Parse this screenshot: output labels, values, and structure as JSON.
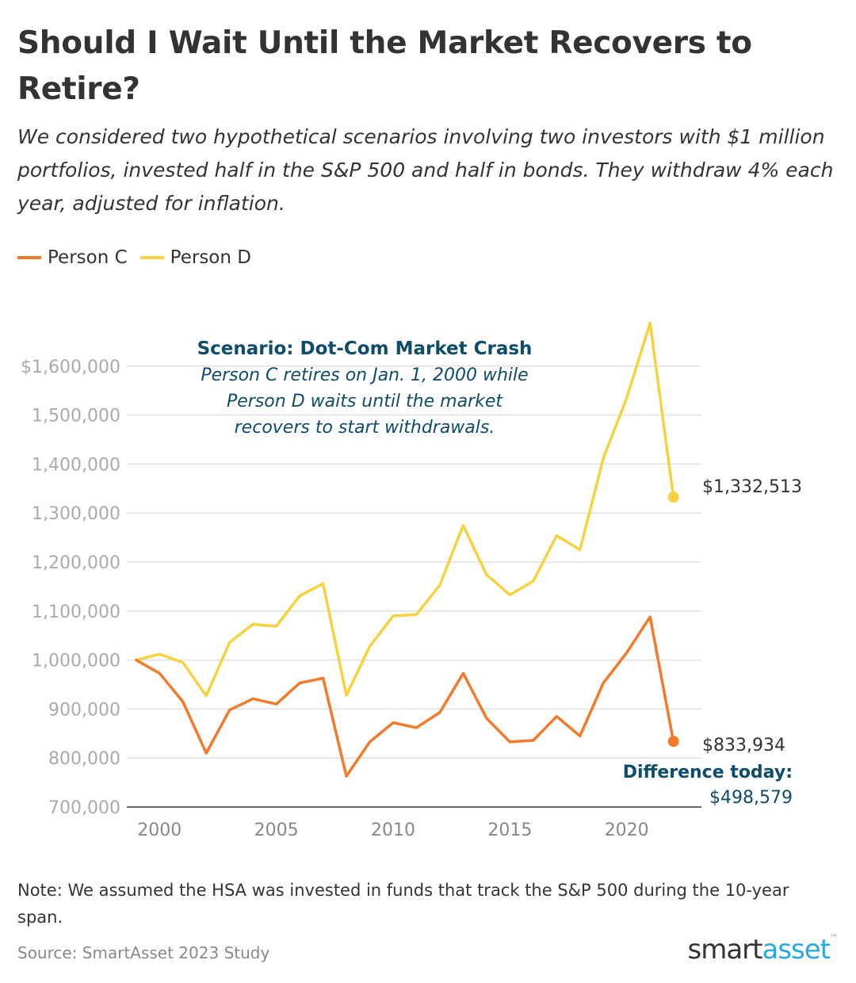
{
  "header": {
    "title": "Should I Wait Until the Market Recovers to Retire?",
    "subtitle": "We considered two hypothetical scenarios involving two investors with $1 million portfolios, invested half in the S&P 500 and half in bonds. They withdraw 4% each year, adjusted for inflation."
  },
  "legend": {
    "items": [
      {
        "label": "Person C",
        "color": "#f47a2a"
      },
      {
        "label": "Person D",
        "color": "#f8d23e"
      }
    ]
  },
  "annotation": {
    "heading": "Scenario: Dot-Com Market Crash",
    "lines": [
      "Person C retires on Jan. 1, 2000 while",
      "Person D waits until the market",
      "recovers to start withdrawals."
    ],
    "color": "#0e4c6b"
  },
  "end_labels": {
    "person_d": "$1,332,513",
    "person_c": "$833,934",
    "difference_label": "Difference today:",
    "difference_value": "$498,579"
  },
  "chart_data": {
    "type": "line",
    "title": "Should I Wait Until the Market Recovers to Retire?",
    "xlabel": "",
    "ylabel": "",
    "xlim": [
      1998.6,
      2023.2
    ],
    "ylim": [
      700000,
      1700000
    ],
    "grid": true,
    "legend_position": "top-left",
    "x_ticks": [
      2000,
      2005,
      2010,
      2015,
      2020
    ],
    "x_tick_labels": [
      "2000",
      "2005",
      "2010",
      "2015",
      "2020"
    ],
    "y_ticks": [
      700000,
      800000,
      900000,
      1000000,
      1100000,
      1200000,
      1300000,
      1400000,
      1500000,
      1600000
    ],
    "y_tick_labels": [
      "700,000",
      "800,000",
      "900,000",
      "1,000,000",
      "1,100,000",
      "1,200,000",
      "1,300,000",
      "1,400,000",
      "1,500,000",
      "$1,600,000"
    ],
    "x": [
      1999,
      2000,
      2001,
      2002,
      2003,
      2004,
      2005,
      2006,
      2007,
      2008,
      2009,
      2010,
      2011,
      2012,
      2013,
      2014,
      2015,
      2016,
      2017,
      2018,
      2019,
      2020,
      2021,
      2022
    ],
    "series": [
      {
        "name": "Person C",
        "color": "#f47a2a",
        "values": [
          1000000,
          973000,
          915000,
          810000,
          898000,
          921000,
          910000,
          953000,
          963000,
          763000,
          833000,
          872000,
          862000,
          893000,
          973000,
          881000,
          833000,
          836000,
          885000,
          845000,
          953000,
          1015000,
          1088000,
          833934
        ]
      },
      {
        "name": "Person D",
        "color": "#f8d23e",
        "values": [
          1000000,
          1012000,
          995000,
          927000,
          1036000,
          1073000,
          1069000,
          1131000,
          1156000,
          928000,
          1028000,
          1090000,
          1093000,
          1153000,
          1275000,
          1174000,
          1133000,
          1161000,
          1254000,
          1225000,
          1412000,
          1535000,
          1688000,
          1332513
        ]
      }
    ]
  },
  "footer": {
    "note": "Note: We assumed the HSA was invested in funds that track the S&P 500 during the 10-year span.",
    "source": "Source: SmartAsset 2023 Study",
    "logo_part1": "smart",
    "logo_part2": "asset",
    "logo_tm": "™"
  }
}
